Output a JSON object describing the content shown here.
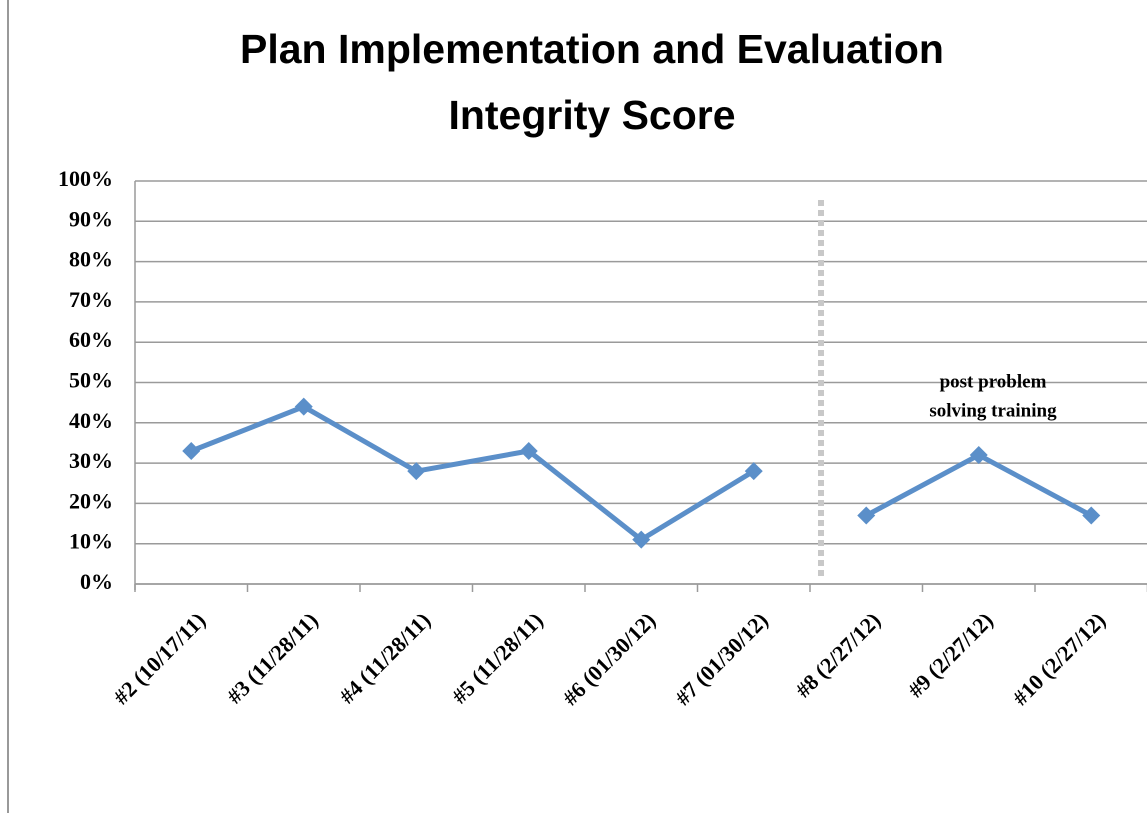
{
  "chart_data": {
    "type": "line",
    "title": [
      "Plan Implementation and Evaluation",
      "Integrity Score"
    ],
    "categories": [
      "#2 (10/17/11)",
      "#3 (11/28/11)",
      "#4 (11/28/11)",
      "#5 (11/28/11)",
      "#6 (01/30/12)",
      "#7 (01/30/12)",
      "#8 (2/27/12)",
      "#9 (2/27/12)",
      "#10 (2/27/12)"
    ],
    "values": [
      33,
      44,
      28,
      33,
      11,
      28,
      17,
      32,
      17
    ],
    "color": "#5b8fc9",
    "phase_break_after": 5,
    "annotation": [
      "post problem",
      "solving training"
    ],
    "ylim": [
      0,
      100
    ],
    "yticks": [
      {
        "value": 0,
        "label": "0%"
      },
      {
        "value": 10,
        "label": "10%"
      },
      {
        "value": 20,
        "label": "20%"
      },
      {
        "value": 30,
        "label": "30%"
      },
      {
        "value": 40,
        "label": "40%"
      },
      {
        "value": 50,
        "label": "50%"
      },
      {
        "value": 60,
        "label": "60%"
      },
      {
        "value": 70,
        "label": "70%"
      },
      {
        "value": 80,
        "label": "80%"
      },
      {
        "value": 90,
        "label": "90%"
      },
      {
        "value": 100,
        "label": "100%"
      }
    ],
    "grid": true
  }
}
